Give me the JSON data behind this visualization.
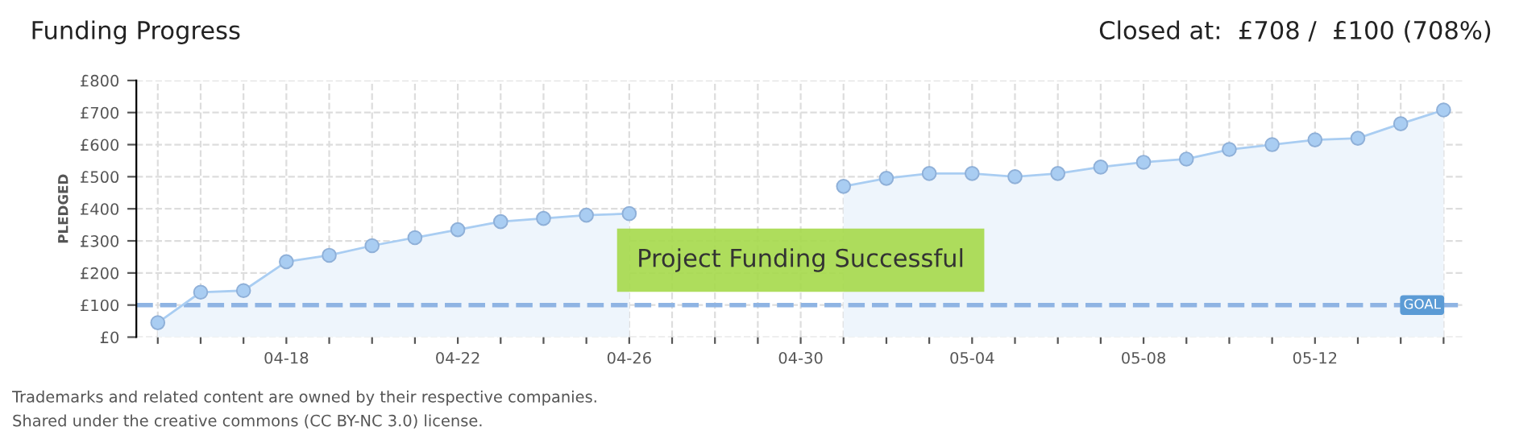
{
  "chart_data": {
    "type": "area",
    "title": "Funding Progress",
    "ylabel": "PLEDGED",
    "categories": [
      null,
      null,
      null,
      "04-18",
      null,
      null,
      null,
      "04-22",
      null,
      null,
      null,
      "04-26",
      null,
      null,
      null,
      "04-30",
      null,
      null,
      null,
      "05-04",
      null,
      null,
      null,
      "05-08",
      null,
      null,
      null,
      "05-12",
      null,
      null,
      null
    ],
    "series": [
      {
        "color": "#a9cdf2",
        "values": [
          45,
          140,
          145,
          235,
          255,
          285,
          310,
          335,
          360,
          370,
          380,
          385,
          null,
          null,
          null,
          null,
          470,
          495,
          510,
          510,
          500,
          510,
          530,
          545,
          555,
          585,
          600,
          615,
          620,
          665,
          708
        ]
      }
    ],
    "ylim": [
      0,
      800
    ],
    "yticks": [
      {
        "value": 0,
        "label": "£0"
      },
      {
        "value": 100,
        "label": "£100"
      },
      {
        "value": 200,
        "label": "£200"
      },
      {
        "value": 300,
        "label": "£300"
      },
      {
        "value": 400,
        "label": "£400"
      },
      {
        "value": 500,
        "label": "£500"
      },
      {
        "value": 600,
        "label": "£600"
      },
      {
        "value": 700,
        "label": "£700"
      },
      {
        "value": 800,
        "label": "£800"
      }
    ],
    "ref_lines": [
      {
        "axis": "y",
        "value": 100,
        "label": "GOAL",
        "color": "#8fb4e3",
        "line_style": "dashed"
      }
    ],
    "annotations": [
      "Closed at:  £708 /  £100 (708%)",
      "Project Funding Successful",
      "Trademarks and related content are owned by their respective companies.",
      "Shared under the creative commons (CC BY-NC 3.0) license."
    ],
    "grid": true,
    "marker": "circle",
    "legend": false
  }
}
